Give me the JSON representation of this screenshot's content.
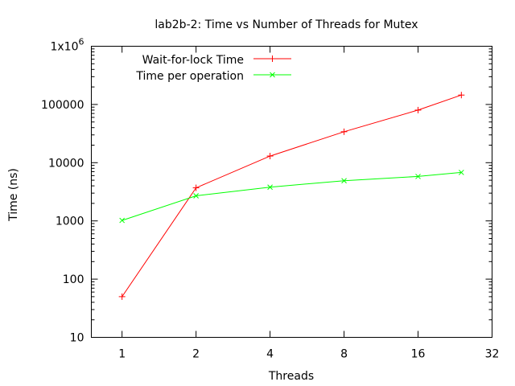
{
  "chart_data": {
    "type": "line",
    "title": "lab2b-2: Time vs Number of Threads for Mutex",
    "xlabel": "Threads",
    "ylabel": "Time (ns)",
    "x_scale": "log2",
    "y_scale": "log10",
    "xlim": [
      0.75,
      32
    ],
    "ylim": [
      10,
      1000000
    ],
    "x_ticks": [
      1,
      2,
      4,
      8,
      16,
      32
    ],
    "x_tick_labels": [
      "1",
      "2",
      "4",
      "8",
      "16",
      "32"
    ],
    "y_ticks": [
      10,
      100,
      1000,
      10000,
      100000,
      1000000
    ],
    "y_tick_labels": [
      "10",
      "100",
      "1000",
      "10000",
      "100000",
      "1x10"
    ],
    "y_top_exponent": "6",
    "grid": false,
    "legend_position": "top-left",
    "series": [
      {
        "name": "Wait-for-lock Time",
        "color": "#ff0000",
        "marker": "plus",
        "x": [
          1,
          2,
          4,
          8,
          16,
          24
        ],
        "y": [
          50,
          3700,
          13000,
          34000,
          80000,
          145000
        ]
      },
      {
        "name": "Time per operation",
        "color": "#00ff00",
        "marker": "cross",
        "x": [
          1,
          2,
          4,
          8,
          16,
          24
        ],
        "y": [
          1020,
          2700,
          3800,
          4900,
          5800,
          6800
        ]
      }
    ]
  }
}
